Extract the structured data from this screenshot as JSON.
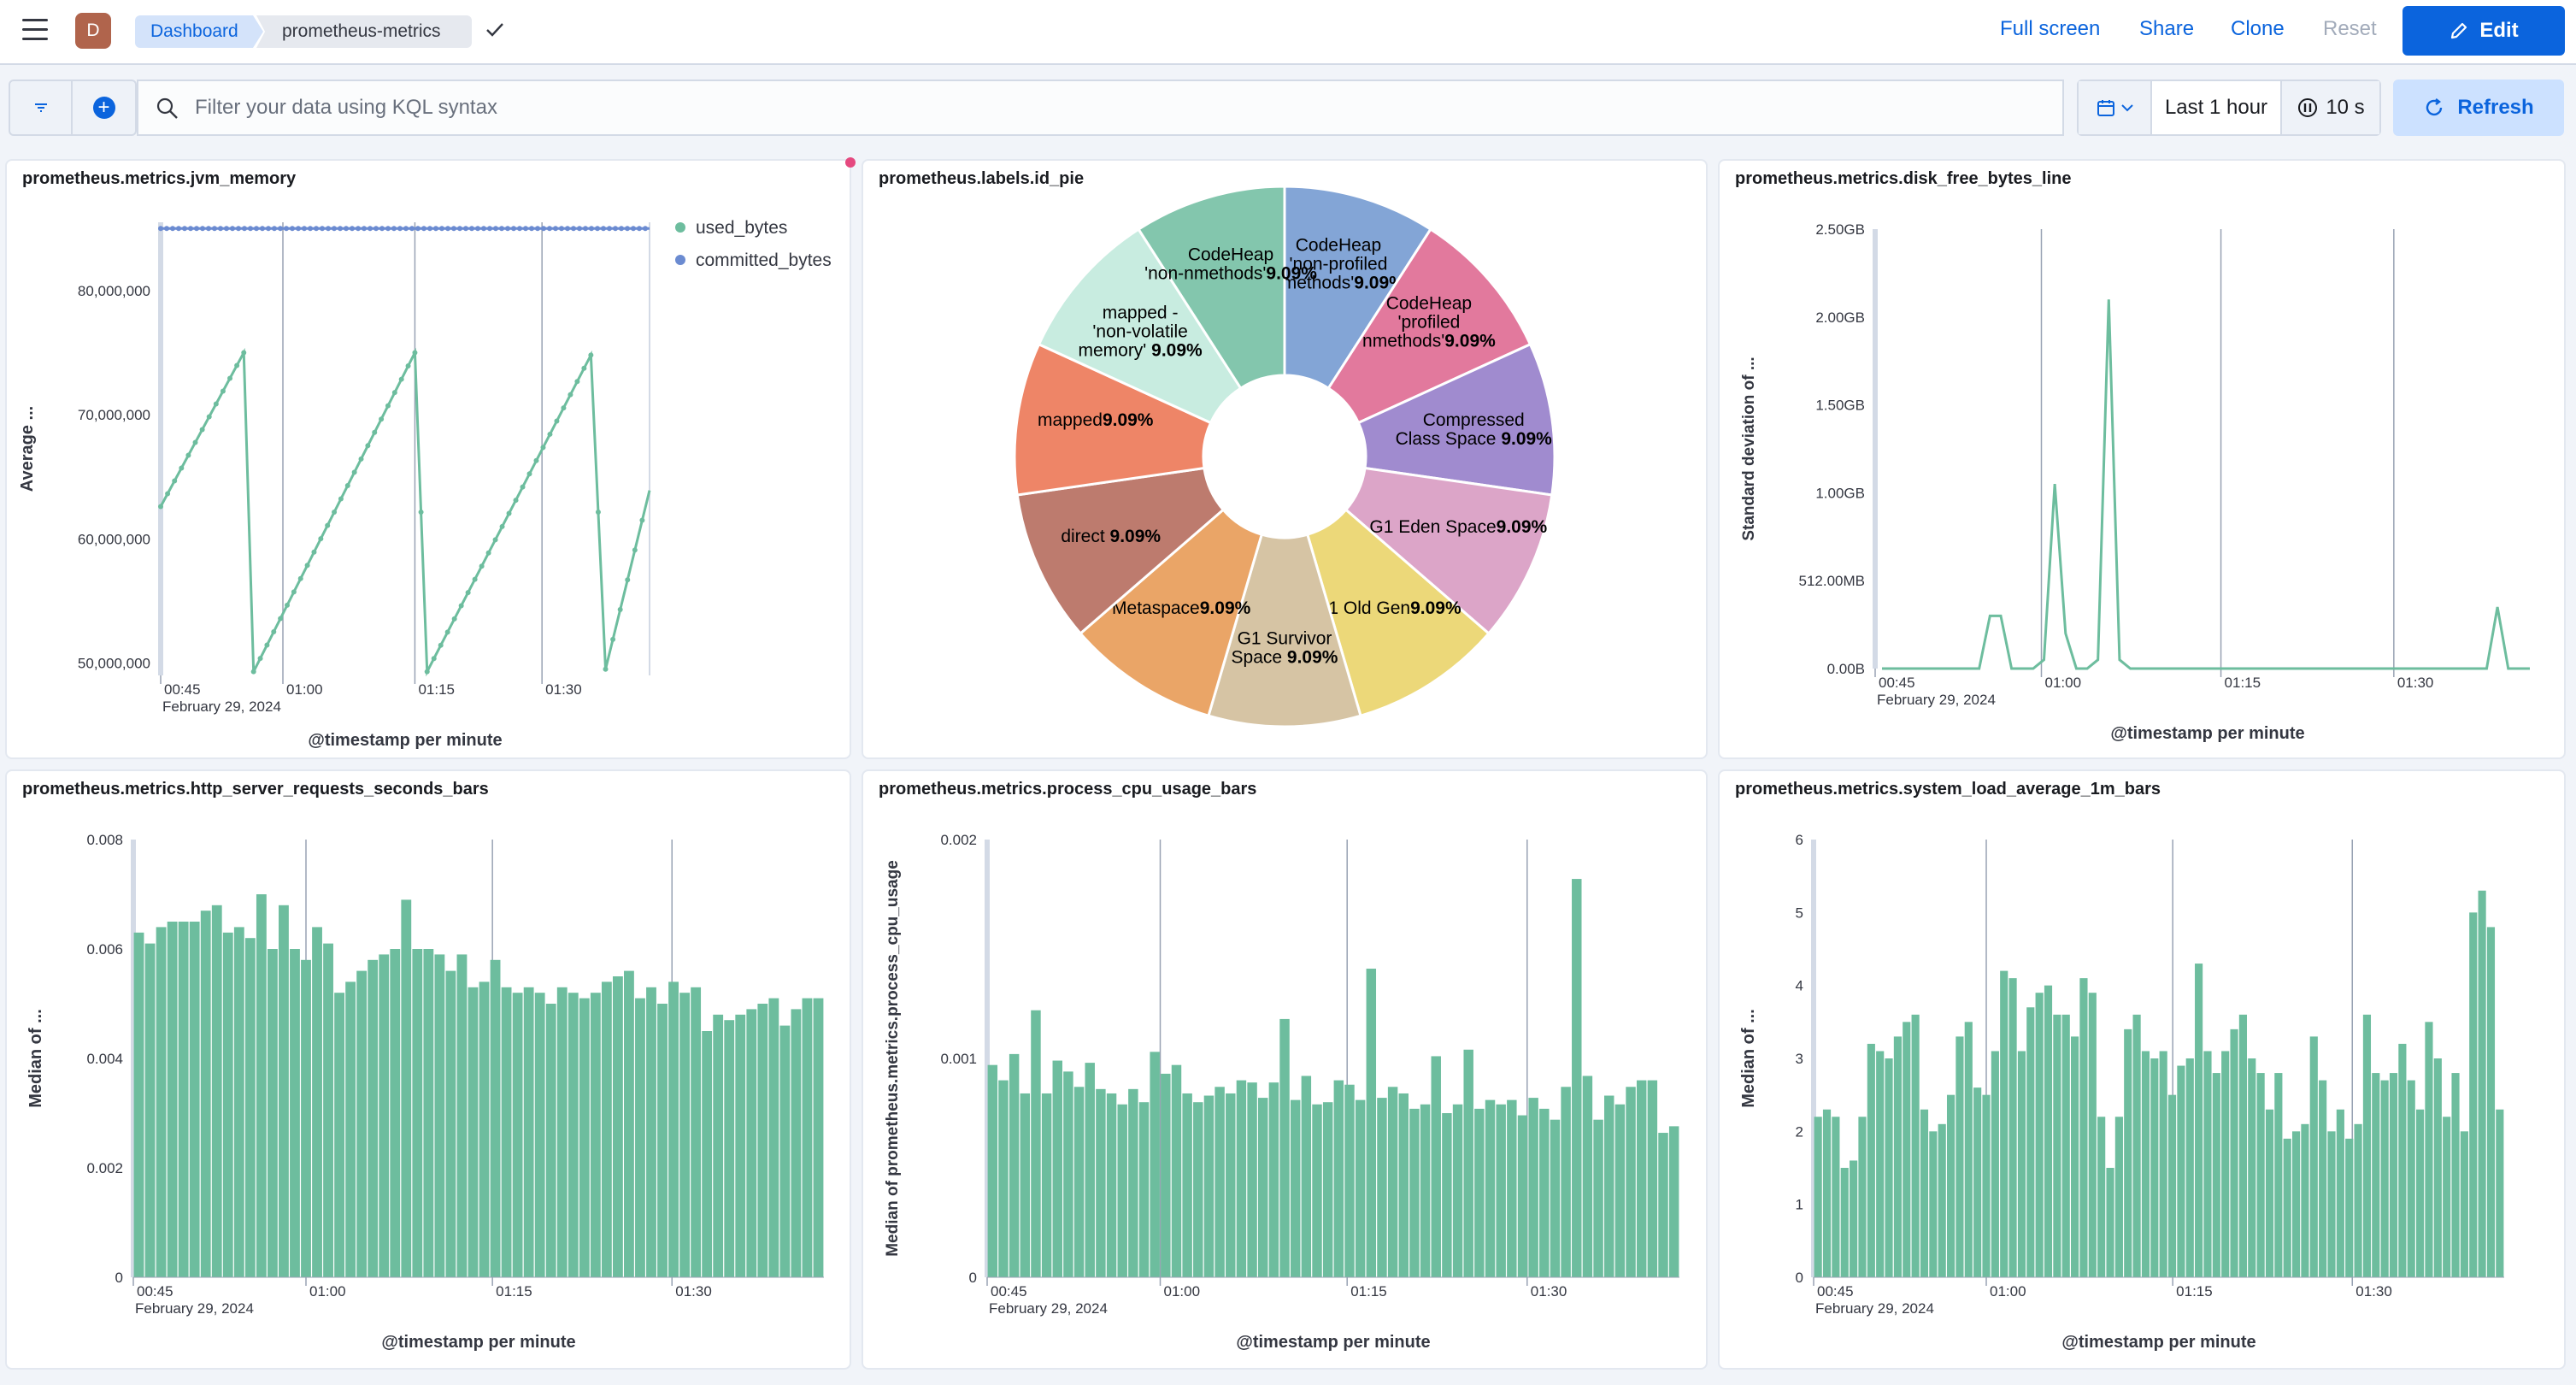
{
  "header": {
    "avatar_letter": "D",
    "breadcrumb": [
      "Dashboard",
      "prometheus-metrics"
    ],
    "actions": [
      "Full screen",
      "Share",
      "Clone",
      "Reset"
    ],
    "edit_label": "Edit"
  },
  "query": {
    "placeholder": "Filter your data using KQL syntax",
    "time_range": "Last 1 hour",
    "refresh_interval": "10 s",
    "refresh_label": "Refresh"
  },
  "colors": {
    "accent": "#0b64dd",
    "series": "#6dbd9e",
    "series2": "#6b8bd1"
  },
  "chart_data": [
    {
      "type": "line",
      "title": "prometheus.metrics.jvm_memory",
      "ylabel": "Average ...",
      "xlabel": "@timestamp per minute",
      "x_ticks": [
        "00:45",
        "01:00",
        "01:15",
        "01:30"
      ],
      "x_subtick": "February 29, 2024",
      "y_ticks": [
        "80,000,000",
        "70,000,000",
        "60,000,000",
        "50,000,000"
      ],
      "ylim": [
        49000000,
        85500000
      ],
      "legend": [
        "used_bytes",
        "committed_bytes"
      ],
      "series": [
        {
          "name": "used_bytes",
          "values": [
            62600000,
            75000000,
            49300000,
            75000000,
            49300000,
            74800000,
            49500000,
            63900000
          ]
        },
        {
          "name": "committed_bytes",
          "values": [
            85000000,
            85000000
          ]
        }
      ]
    },
    {
      "type": "pie",
      "title": "prometheus.labels.id_pie",
      "slices": [
        {
          "label": "CodeHeap 'non-profiled nmethods'",
          "value": 9.09,
          "pct": "9.09%",
          "color": "#83a5d6"
        },
        {
          "label": "CodeHeap 'profiled nmethods'",
          "value": 9.09,
          "pct": "9.09%",
          "color": "#e2799d"
        },
        {
          "label": "Compressed Class Space",
          "value": 9.09,
          "pct": "9.09%",
          "color": "#a08bcf"
        },
        {
          "label": "G1 Eden Space",
          "value": 9.09,
          "pct": "9.09%",
          "color": "#dca5c8"
        },
        {
          "label": "G1 Old Gen",
          "value": 9.09,
          "pct": "9.09%",
          "color": "#ecd879"
        },
        {
          "label": "G1 Survivor Space",
          "value": 9.09,
          "pct": "9.09%",
          "color": "#d6c4a4"
        },
        {
          "label": "Metaspace",
          "value": 9.09,
          "pct": "9.09%",
          "color": "#eaa567"
        },
        {
          "label": "direct",
          "value": 9.09,
          "pct": "9.09%",
          "color": "#bd7b6e"
        },
        {
          "label": "mapped",
          "value": 9.09,
          "pct": "9.09%",
          "color": "#ee8567"
        },
        {
          "label": "mapped - 'non-volatile memory'",
          "value": 9.09,
          "pct": "9.09%",
          "color": "#c8ece0"
        },
        {
          "label": "CodeHeap 'non-nmethods'",
          "value": 9.09,
          "pct": "9.09%",
          "color": "#83c6ad"
        }
      ]
    },
    {
      "type": "line",
      "title": "prometheus.metrics.disk_free_bytes_line",
      "ylabel": "Standard deviation of ...",
      "xlabel": "@timestamp per minute",
      "x_ticks": [
        "00:45",
        "01:00",
        "01:15",
        "01:30"
      ],
      "x_subtick": "February 29, 2024",
      "y_ticks": [
        "2.50GB",
        "2.00GB",
        "1.50GB",
        "1.00GB",
        "512.00MB",
        "0.00B"
      ],
      "ylim": [
        0,
        2.5
      ],
      "unit": "GB",
      "values": [
        0,
        0,
        0,
        0,
        0,
        0,
        0,
        0,
        0,
        0,
        0.3,
        0.3,
        0,
        0,
        0,
        0.05,
        1.05,
        0.2,
        0,
        0,
        0.05,
        2.1,
        0.05,
        0,
        0,
        0,
        0,
        0,
        0,
        0,
        0,
        0,
        0,
        0,
        0,
        0,
        0,
        0,
        0,
        0,
        0,
        0,
        0,
        0,
        0,
        0,
        0,
        0,
        0,
        0,
        0,
        0,
        0,
        0,
        0,
        0,
        0,
        0.35,
        0,
        0,
        0
      ]
    },
    {
      "type": "bar",
      "title": "prometheus.metrics.http_server_requests_seconds_bars",
      "ylabel": "Median of ...",
      "xlabel": "@timestamp per minute",
      "x_ticks": [
        "00:45",
        "01:00",
        "01:15",
        "01:30"
      ],
      "x_subtick": "February 29, 2024",
      "y_ticks": [
        "0.008",
        "0.006",
        "0.004",
        "0.002",
        "0"
      ],
      "ylim": [
        0,
        0.008
      ],
      "values": [
        0.0063,
        0.0061,
        0.0064,
        0.0065,
        0.0065,
        0.0065,
        0.0067,
        0.0068,
        0.0063,
        0.0064,
        0.0062,
        0.007,
        0.006,
        0.0068,
        0.006,
        0.0058,
        0.0064,
        0.0061,
        0.0052,
        0.0054,
        0.0056,
        0.0058,
        0.0059,
        0.006,
        0.0069,
        0.006,
        0.006,
        0.0059,
        0.0056,
        0.0059,
        0.0053,
        0.0054,
        0.0058,
        0.0053,
        0.0052,
        0.0053,
        0.0052,
        0.005,
        0.0053,
        0.0052,
        0.0051,
        0.0052,
        0.0054,
        0.0055,
        0.0056,
        0.0051,
        0.0053,
        0.005,
        0.0054,
        0.0052,
        0.0053,
        0.0045,
        0.0048,
        0.0047,
        0.0048,
        0.0049,
        0.005,
        0.0051,
        0.0046,
        0.0049,
        0.0051,
        0.0051
      ]
    },
    {
      "type": "bar",
      "title": "prometheus.metrics.process_cpu_usage_bars",
      "ylabel": "Median of prometheus.metrics.process_cpu_usage",
      "xlabel": "@timestamp per minute",
      "x_ticks": [
        "00:45",
        "01:00",
        "01:15",
        "01:30"
      ],
      "x_subtick": "February 29, 2024",
      "y_ticks": [
        "0.002",
        "0.001",
        "0"
      ],
      "ylim": [
        0,
        0.002
      ],
      "values": [
        0.00097,
        0.0009,
        0.00102,
        0.00084,
        0.00122,
        0.00084,
        0.00099,
        0.00094,
        0.00087,
        0.00098,
        0.00086,
        0.00084,
        0.00079,
        0.00086,
        0.0008,
        0.00103,
        0.00093,
        0.00097,
        0.00084,
        0.0008,
        0.00083,
        0.00087,
        0.00084,
        0.0009,
        0.00089,
        0.00082,
        0.00089,
        0.00118,
        0.00081,
        0.00092,
        0.00079,
        0.0008,
        0.0009,
        0.00088,
        0.00081,
        0.00141,
        0.00082,
        0.00087,
        0.00084,
        0.00077,
        0.00079,
        0.00101,
        0.00075,
        0.00079,
        0.00104,
        0.00077,
        0.00081,
        0.00079,
        0.00081,
        0.00074,
        0.00082,
        0.00077,
        0.00072,
        0.00087,
        0.00182,
        0.00092,
        0.00072,
        0.00083,
        0.00079,
        0.00087,
        0.0009,
        0.0009,
        0.00066,
        0.00069
      ]
    },
    {
      "type": "bar",
      "title": "prometheus.metrics.system_load_average_1m_bars",
      "ylabel": "Median of ...",
      "xlabel": "@timestamp per minute",
      "x_ticks": [
        "00:45",
        "01:00",
        "01:15",
        "01:30"
      ],
      "x_subtick": "February 29, 2024",
      "y_ticks": [
        "6",
        "5",
        "4",
        "3",
        "2",
        "1",
        "0"
      ],
      "ylim": [
        0,
        6
      ],
      "values": [
        2.2,
        2.3,
        2.2,
        1.5,
        1.6,
        2.2,
        3.2,
        3.1,
        3.0,
        3.3,
        3.5,
        3.6,
        2.3,
        2.0,
        2.1,
        2.5,
        3.3,
        3.5,
        2.6,
        2.5,
        3.1,
        4.2,
        4.1,
        3.1,
        3.7,
        3.9,
        4.0,
        3.6,
        3.6,
        3.3,
        4.1,
        3.9,
        2.2,
        1.5,
        2.2,
        3.4,
        3.6,
        3.1,
        3.0,
        3.1,
        2.5,
        2.9,
        3.0,
        4.3,
        3.1,
        2.8,
        3.1,
        3.4,
        3.6,
        3.0,
        2.8,
        2.3,
        2.8,
        1.9,
        2.0,
        2.1,
        3.3,
        2.7,
        2.0,
        2.3,
        1.9,
        2.1,
        3.6,
        2.8,
        2.7,
        2.8,
        3.2,
        2.7,
        2.3,
        3.5,
        3.0,
        2.2,
        2.8,
        2.0,
        5.0,
        5.3,
        4.8,
        2.3
      ]
    }
  ]
}
